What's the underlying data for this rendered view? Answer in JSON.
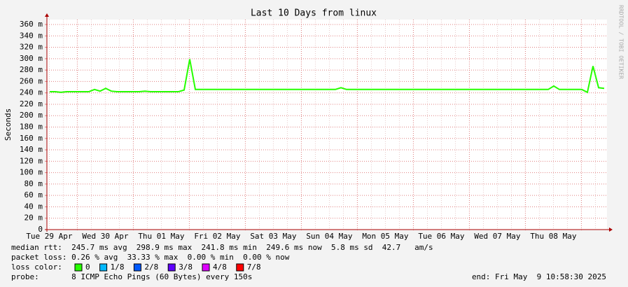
{
  "chart_data": {
    "type": "line",
    "title": "Last 10 Days from linux",
    "y_label": "Seconds",
    "watermark": "RRDTOOL / TOBI OETIKER",
    "ylim": [
      0,
      0.36
    ],
    "yticks": [
      {
        "value": 0,
        "label": "0"
      },
      {
        "value": 0.02,
        "label": "20 m"
      },
      {
        "value": 0.04,
        "label": "40 m"
      },
      {
        "value": 0.06,
        "label": "60 m"
      },
      {
        "value": 0.08,
        "label": "80 m"
      },
      {
        "value": 0.1,
        "label": "100 m"
      },
      {
        "value": 0.12,
        "label": "120 m"
      },
      {
        "value": 0.14,
        "label": "140 m"
      },
      {
        "value": 0.16,
        "label": "160 m"
      },
      {
        "value": 0.18,
        "label": "180 m"
      },
      {
        "value": 0.2,
        "label": "200 m"
      },
      {
        "value": 0.22,
        "label": "220 m"
      },
      {
        "value": 0.24,
        "label": "240 m"
      },
      {
        "value": 0.26,
        "label": "260 m"
      },
      {
        "value": 0.28,
        "label": "280 m"
      },
      {
        "value": 0.3,
        "label": "300 m"
      },
      {
        "value": 0.32,
        "label": "320 m"
      },
      {
        "value": 0.34,
        "label": "340 m"
      },
      {
        "value": 0.36,
        "label": "360 m"
      }
    ],
    "xtick_labels": [
      "Tue 29 Apr",
      "Wed 30 Apr",
      "Thu 01 May",
      "Fri 02 May",
      "Sat 03 May",
      "Sun 04 May",
      "Mon 05 May",
      "Tue 06 May",
      "Wed 07 May",
      "Thu 08 May"
    ],
    "grid": true,
    "series": [
      {
        "name": "median rtt",
        "color": "#26ff00",
        "values": [
          0.242,
          0.242,
          0.241,
          0.242,
          0.242,
          0.242,
          0.242,
          0.242,
          0.246,
          0.243,
          0.248,
          0.243,
          0.242,
          0.242,
          0.242,
          0.242,
          0.242,
          0.243,
          0.242,
          0.242,
          0.242,
          0.242,
          0.242,
          0.242,
          0.245,
          0.299,
          0.246,
          0.246,
          0.246,
          0.246,
          0.246,
          0.246,
          0.246,
          0.246,
          0.246,
          0.246,
          0.246,
          0.246,
          0.246,
          0.246,
          0.246,
          0.246,
          0.246,
          0.246,
          0.246,
          0.246,
          0.246,
          0.246,
          0.246,
          0.246,
          0.246,
          0.246,
          0.249,
          0.246,
          0.246,
          0.246,
          0.246,
          0.246,
          0.246,
          0.246,
          0.246,
          0.246,
          0.246,
          0.246,
          0.246,
          0.246,
          0.246,
          0.246,
          0.246,
          0.246,
          0.246,
          0.246,
          0.246,
          0.246,
          0.246,
          0.246,
          0.246,
          0.246,
          0.246,
          0.246,
          0.246,
          0.246,
          0.246,
          0.246,
          0.246,
          0.246,
          0.246,
          0.246,
          0.246,
          0.246,
          0.252,
          0.246,
          0.246,
          0.246,
          0.246,
          0.246,
          0.241,
          0.287,
          0.249,
          0.248
        ]
      }
    ],
    "notes": [
      "median rtt:  245.7 ms avg  298.9 ms max  241.8 ms min  249.6 ms now  5.8 ms sd  42.7   am/s",
      "packet loss: 0.26 % avg  33.33 % max  0.00 % min  0.00 % now",
      "loss color:",
      "probe:       8 ICMP Echo Pings (60 Bytes) every 150s"
    ],
    "loss_legend": [
      {
        "label": "0",
        "color": "#26ff00"
      },
      {
        "label": "1/8",
        "color": "#00b8ff"
      },
      {
        "label": "2/8",
        "color": "#0059ff"
      },
      {
        "label": "3/8",
        "color": "#5e00ff"
      },
      {
        "label": "4/8",
        "color": "#dd00ff"
      },
      {
        "label": "7/8",
        "color": "#ff0000"
      }
    ],
    "end_label": "end: Fri May  9 10:58:30 2025"
  }
}
